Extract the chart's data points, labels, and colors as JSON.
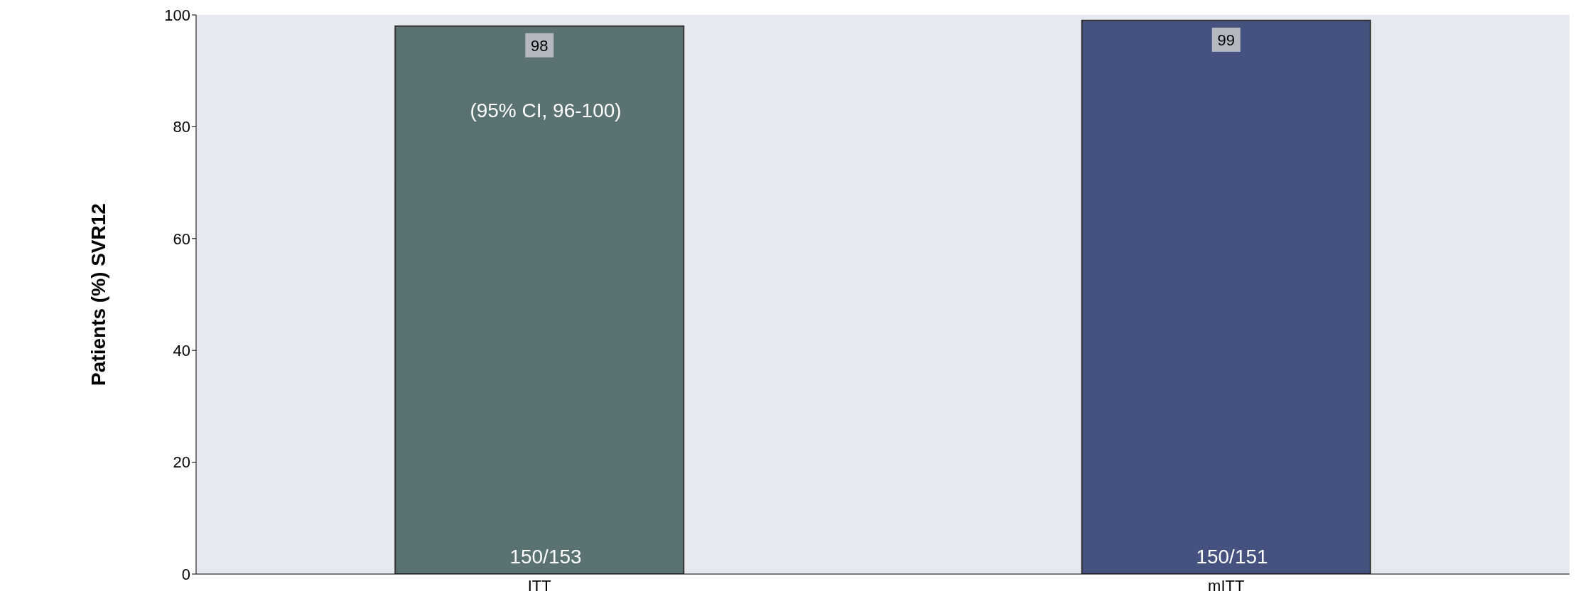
{
  "chart_data": {
    "type": "bar",
    "ylabel": "Patients (%) SVR12",
    "categories": [
      "ITT",
      "mITT"
    ],
    "values": [
      98,
      99
    ],
    "colors": [
      "#5a7272",
      "#45527f"
    ],
    "ylim": [
      0,
      100
    ],
    "yticks": [
      0,
      20,
      40,
      60,
      80,
      100
    ],
    "grid": false,
    "data_labels": true,
    "annotations": [
      "(95% CI, 96-100)",
      "150/153",
      "150/151"
    ]
  }
}
